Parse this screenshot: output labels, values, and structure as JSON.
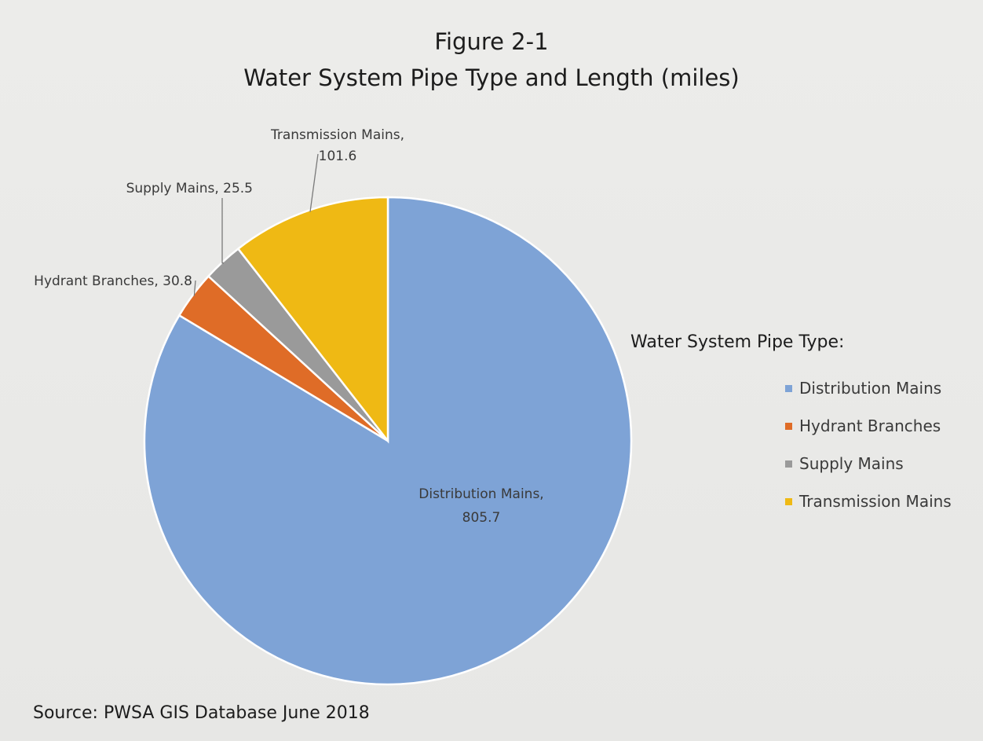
{
  "chart_data": {
    "type": "pie",
    "figure_number": "Figure 2-1",
    "title": "Water System Pipe Type and Length (miles)",
    "legend_title": "Water System Pipe Type:",
    "legend_position": "right",
    "slices": [
      {
        "label": "Distribution Mains",
        "value": 805.7,
        "color": "#7ea3d6",
        "data_label_line1": "Distribution Mains,",
        "data_label_line2": "805.7"
      },
      {
        "label": "Hydrant Branches",
        "value": 30.8,
        "color": "#df6c27",
        "data_label_line1": "Hydrant Branches, 30.8",
        "data_label_line2": ""
      },
      {
        "label": "Supply Mains",
        "value": 25.5,
        "color": "#9a9a9a",
        "data_label_line1": "Supply Mains, 25.5",
        "data_label_line2": ""
      },
      {
        "label": "Transmission Mains",
        "value": 101.6,
        "color": "#efb914",
        "data_label_line1": "Transmission Mains,",
        "data_label_line2": "101.6"
      }
    ],
    "source": "Source: PWSA GIS Database June 2018"
  }
}
